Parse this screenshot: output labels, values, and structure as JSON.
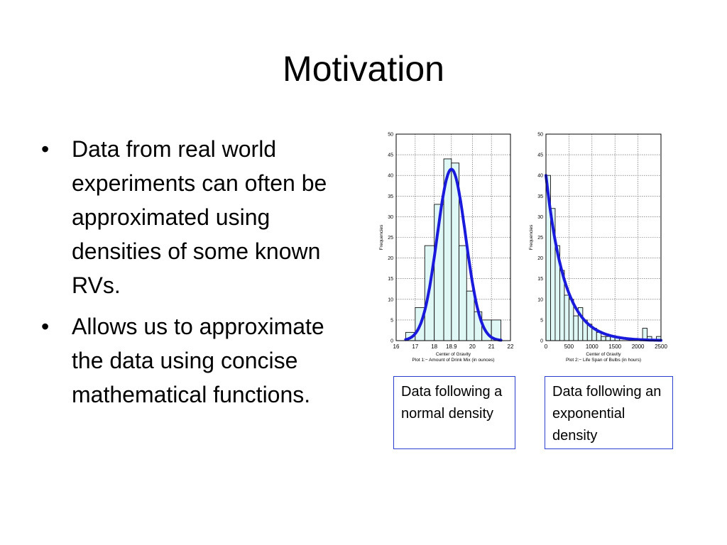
{
  "slide": {
    "title": "Motivation",
    "bullets": [
      "Data from real world experiments can often be approximated using densities of some known RVs.",
      "Allows us to approximate the data using concise mathematical functions."
    ],
    "bullet_symbol": "•",
    "captions": [
      "Data following a normal density",
      "Data following an exponential density"
    ],
    "colors": {
      "curve": "#1a1adc",
      "bar_fill": "#dff8f5",
      "caption_border": "#2a3fcf"
    }
  },
  "chart_data": [
    {
      "type": "bar",
      "title": "",
      "xlabel": "Center of Gravity",
      "caption": "Plot 1:− Amount of Drink Mix (in ounces)",
      "ylabel": "Frequencies",
      "xlim": [
        16,
        22
      ],
      "ylim": [
        0,
        50
      ],
      "xticks": [
        16,
        17,
        18,
        18.9,
        20,
        21,
        22
      ],
      "xtick_labels": [
        "16",
        "17",
        "18",
        "18.9",
        "20",
        "21",
        "22"
      ],
      "yticks": [
        0,
        5,
        10,
        15,
        20,
        25,
        30,
        35,
        40,
        45,
        50
      ],
      "grid": true,
      "bins": [
        [
          16.5,
          17.0
        ],
        [
          17.0,
          17.5
        ],
        [
          17.5,
          18.0
        ],
        [
          18.0,
          18.5
        ],
        [
          18.5,
          18.9
        ],
        [
          18.9,
          19.3
        ],
        [
          19.3,
          19.7
        ],
        [
          19.7,
          20.1
        ],
        [
          20.1,
          20.5
        ],
        [
          20.5,
          21.0
        ],
        [
          21.0,
          21.5
        ]
      ],
      "values": [
        2,
        8,
        23,
        33,
        44,
        43,
        23,
        12,
        7,
        5,
        5
      ],
      "curve": {
        "type": "normal",
        "mean": 18.9,
        "sd": 0.75,
        "peak": 41.5,
        "x_range": [
          16.5,
          21.5
        ]
      }
    },
    {
      "type": "bar",
      "title": "",
      "xlabel": "Center of Gravity",
      "caption": "Plot 2:− Life Span of Bulbs (in hours)",
      "ylabel": "Frequencies",
      "xlim": [
        0,
        2500
      ],
      "ylim": [
        0,
        50
      ],
      "xticks": [
        0,
        500,
        1000,
        1500,
        2000,
        2500
      ],
      "xtick_labels": [
        "0",
        "500",
        "1000",
        "1500",
        "2000",
        "2500"
      ],
      "yticks": [
        0,
        5,
        10,
        15,
        20,
        25,
        30,
        35,
        40,
        45,
        50
      ],
      "grid": true,
      "bin_width": 100,
      "values": [
        40,
        32,
        23,
        17,
        11,
        10,
        6,
        8,
        5,
        4,
        3,
        2,
        1,
        1,
        1,
        1,
        0,
        0,
        0,
        0,
        0,
        3,
        1,
        0,
        1
      ],
      "curve": {
        "type": "exponential",
        "amplitude": 40,
        "mean": 400,
        "x_range": [
          0,
          2500
        ]
      }
    }
  ]
}
